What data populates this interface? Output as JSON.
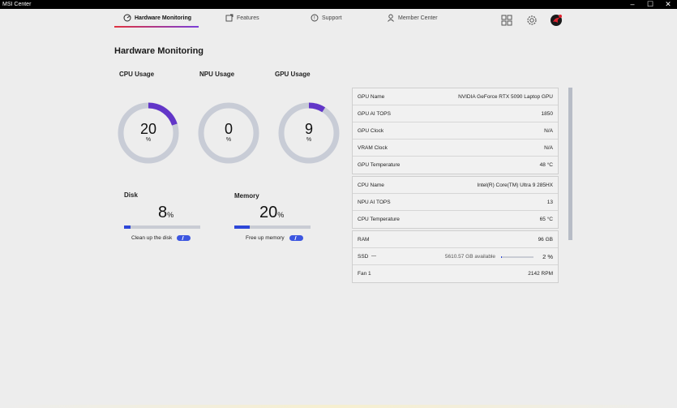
{
  "window": {
    "title": "MSI Center",
    "minimize": "–",
    "maximize": "☐",
    "close": "✕"
  },
  "nav": {
    "tabs": [
      {
        "label": "Hardware Monitoring",
        "icon": "gauge-icon",
        "active": true
      },
      {
        "label": "Features",
        "icon": "features-icon"
      },
      {
        "label": "Support",
        "icon": "support-icon"
      },
      {
        "label": "Member Center",
        "icon": "person-icon"
      }
    ],
    "right_icons": [
      "grid-icon",
      "gear-icon",
      "msi-dragon-avatar-icon"
    ]
  },
  "page_title": "Hardware Monitoring",
  "gauges": [
    {
      "label": "CPU Usage",
      "value": "20",
      "unit": "%",
      "fraction": 0.2
    },
    {
      "label": "NPU Usage",
      "value": "0",
      "unit": "%",
      "fraction": 0.0
    },
    {
      "label": "GPU Usage",
      "value": "9",
      "unit": "%",
      "fraction": 0.09
    }
  ],
  "bars": [
    {
      "label": "Disk",
      "value": "8",
      "unit": "%",
      "fraction": 0.08,
      "action": "Clean up the disk"
    },
    {
      "label": "Memory",
      "value": "20",
      "unit": "%",
      "fraction": 0.2,
      "action": "Free up memory"
    }
  ],
  "info_groups": [
    {
      "rows": [
        {
          "key": "GPU Name",
          "value": "NVIDIA GeForce RTX 5090 Laptop GPU"
        },
        {
          "key": "GPU AI TOPS",
          "value": "1850"
        },
        {
          "key": "GPU Clock",
          "value": "N/A"
        },
        {
          "key": "VRAM Clock",
          "value": "N/A"
        },
        {
          "key": "GPU Temperature",
          "value": "48 °C"
        }
      ]
    },
    {
      "rows": [
        {
          "key": "CPU Name",
          "value": "Intel(R) Core(TM) Ultra 9 285HX"
        },
        {
          "key": "NPU AI TOPS",
          "value": "13"
        },
        {
          "key": "CPU Temperature",
          "value": "65 °C"
        }
      ]
    },
    {
      "rows": [
        {
          "key": "RAM",
          "value": "96 GB"
        },
        {
          "key": "SSD",
          "available": "5610.57 GB available",
          "percent": "2 %",
          "fraction": 0.02
        },
        {
          "key": "Fan 1",
          "value": "2142 RPM"
        }
      ]
    }
  ],
  "colors": {
    "accent_purple": "#6236c8",
    "track_gray": "#c8ccd6",
    "bar_blue": "#2d47d8",
    "active_underline_start": "#e0323f",
    "active_underline_end": "#7a3fd8"
  }
}
